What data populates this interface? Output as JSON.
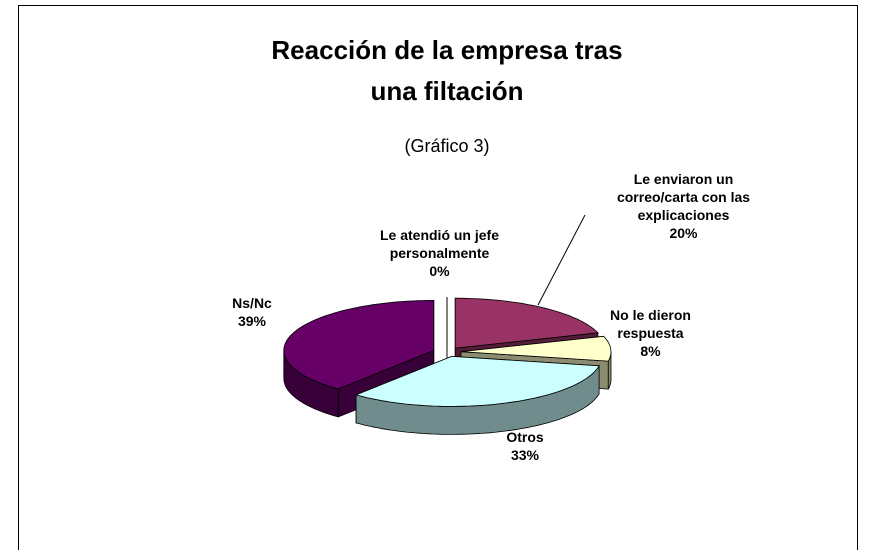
{
  "chart_data": {
    "type": "pie",
    "title": "Reacción de la empresa tras una filtación",
    "subtitle": "(Gráfico 3)",
    "categories": [
      "Le enviaron un correo/carta con las explicaciones",
      "No le dieron respuesta",
      "Otros",
      "Ns/Nc",
      "Le atendió un jefe personalmente"
    ],
    "values": [
      20,
      8,
      33,
      39,
      0
    ],
    "value_labels": [
      "20%",
      "8%",
      "33%",
      "39%",
      "0%"
    ],
    "colors": [
      "#993366",
      "#ffffcc",
      "#ccffff",
      "#660066",
      "#ffffff"
    ]
  }
}
